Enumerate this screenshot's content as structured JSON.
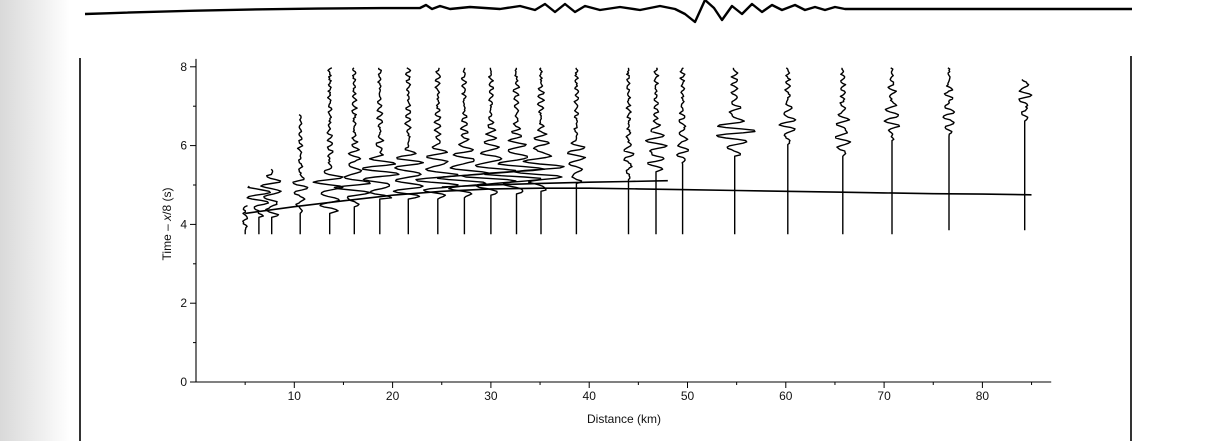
{
  "chart_data": {
    "type": "line",
    "title": "",
    "xlabel": "Distance (km)",
    "ylabel_prefix": "Time – ",
    "ylabel_var": "x",
    "ylabel_suffix": "/8 (s)",
    "xlim": [
      0,
      87
    ],
    "ylim": [
      0,
      8.2
    ],
    "x_ticks": [
      10,
      20,
      30,
      40,
      50,
      60,
      70,
      80
    ],
    "x_minor_ticks": [
      5,
      15,
      25,
      35,
      45,
      55,
      65,
      75,
      85
    ],
    "y_ticks": [
      0,
      2,
      4,
      6,
      8
    ],
    "y_minor_ticks": [
      1,
      3,
      5,
      7
    ],
    "grid": false,
    "legend": "none",
    "travel_time_curve": {
      "x": [
        5,
        10,
        15,
        20,
        25,
        30,
        35,
        40,
        45,
        50,
        55,
        60,
        65,
        70,
        75,
        80,
        85
      ],
      "y": [
        4.28,
        4.45,
        4.6,
        4.74,
        4.84,
        4.9,
        4.92,
        4.92,
        4.9,
        4.88,
        4.86,
        4.84,
        4.82,
        4.8,
        4.78,
        4.77,
        4.75
      ]
    },
    "reflected_branch": {
      "x": [
        25,
        30,
        35,
        40,
        44,
        48
      ],
      "y": [
        4.95,
        5.0,
        5.04,
        5.07,
        5.09,
        5.11
      ]
    },
    "seismograms": [
      {
        "distance": 5.0,
        "top": 4.5,
        "bottom": 3.75,
        "arrival": 4.4,
        "amplitude": 2
      },
      {
        "distance": 6.4,
        "top": 5.0,
        "bottom": 3.75,
        "arrival": 4.75,
        "amplitude": 10
      },
      {
        "distance": 7.7,
        "top": 5.4,
        "bottom": 3.75,
        "arrival": 4.75,
        "amplitude": 9
      },
      {
        "distance": 10.6,
        "top": 6.8,
        "bottom": 3.75,
        "arrival": 4.85,
        "amplitude": 6
      },
      {
        "distance": 13.6,
        "top": 8.0,
        "bottom": 3.75,
        "arrival": 4.85,
        "amplitude": 13
      },
      {
        "distance": 16.1,
        "top": 8.0,
        "bottom": 3.75,
        "arrival": 5.0,
        "amplitude": 14
      },
      {
        "distance": 18.7,
        "top": 8.0,
        "bottom": 3.75,
        "arrival": 5.2,
        "amplitude": 17
      },
      {
        "distance": 21.6,
        "top": 8.0,
        "bottom": 3.75,
        "arrival": 5.2,
        "amplitude": 17
      },
      {
        "distance": 24.6,
        "top": 8.0,
        "bottom": 3.75,
        "arrival": 5.2,
        "amplitude": 19
      },
      {
        "distance": 27.3,
        "top": 8.0,
        "bottom": 3.75,
        "arrival": 5.25,
        "amplitude": 21
      },
      {
        "distance": 30.0,
        "top": 8.0,
        "bottom": 3.75,
        "arrival": 5.3,
        "amplitude": 22
      },
      {
        "distance": 32.6,
        "top": 8.0,
        "bottom": 3.75,
        "arrival": 5.35,
        "amplitude": 24
      },
      {
        "distance": 35.1,
        "top": 8.0,
        "bottom": 3.75,
        "arrival": 5.4,
        "amplitude": 20
      },
      {
        "distance": 38.7,
        "top": 8.0,
        "bottom": 3.75,
        "arrival": 5.6,
        "amplitude": 8
      },
      {
        "distance": 44.0,
        "top": 8.0,
        "bottom": 3.75,
        "arrival": 5.7,
        "amplitude": 4
      },
      {
        "distance": 46.8,
        "top": 8.0,
        "bottom": 3.75,
        "arrival": 5.9,
        "amplitude": 10
      },
      {
        "distance": 49.5,
        "top": 8.0,
        "bottom": 3.75,
        "arrival": 6.1,
        "amplitude": 5
      },
      {
        "distance": 54.8,
        "top": 8.0,
        "bottom": 3.75,
        "arrival": 6.3,
        "amplitude": 16
      },
      {
        "distance": 60.2,
        "top": 8.0,
        "bottom": 3.75,
        "arrival": 6.6,
        "amplitude": 6
      },
      {
        "distance": 65.8,
        "top": 8.0,
        "bottom": 3.75,
        "arrival": 6.3,
        "amplitude": 7
      },
      {
        "distance": 70.8,
        "top": 8.0,
        "bottom": 3.75,
        "arrival": 6.7,
        "amplitude": 6
      },
      {
        "distance": 76.6,
        "top": 8.0,
        "bottom": 3.85,
        "arrival": 6.8,
        "amplitude": 5
      },
      {
        "distance": 84.3,
        "top": 7.7,
        "bottom": 3.85,
        "arrival": 7.2,
        "amplitude": 5
      }
    ]
  }
}
